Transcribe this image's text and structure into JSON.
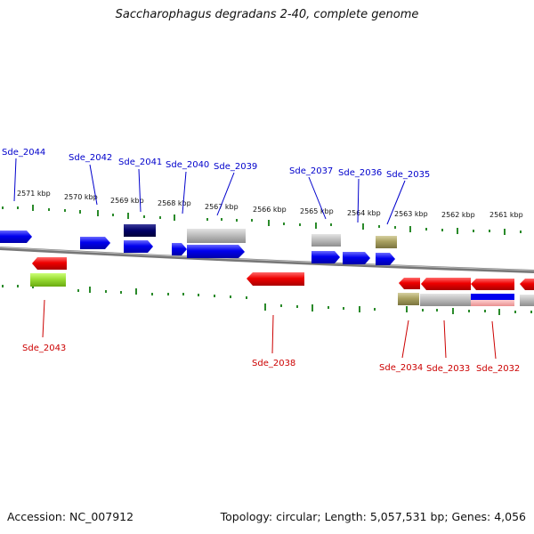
{
  "title": "Saccharophagus degradans 2-40, complete genome",
  "footer": {
    "accession": "Accession: NC_007912",
    "genome_info": "Topology: circular; Length: 5,057,531 bp; Genes: 4,056"
  },
  "colors": {
    "forward_strand": "#0000ee",
    "reverse_strand": "#ee0000",
    "forward_label": "#0000cc",
    "reverse_label": "#cc0000",
    "tick": "#2a8a2a",
    "backbone": "#777777",
    "selected": "#000066",
    "gray": "#bdbdbd",
    "olive": "#a8a060",
    "lime": "#99dd33"
  },
  "scale": {
    "upper_ticks": [
      "2571 kbp",
      "2570 kbp",
      "2569 kbp",
      "2568 kbp",
      "2567 kbp",
      "2566 kbp",
      "2565 kbp",
      "2564 kbp",
      "2563 kbp",
      "2562 kbp",
      "2561 kbp"
    ]
  },
  "genes_forward": [
    {
      "label": "Sde_2044",
      "color": "forward_strand"
    },
    {
      "label": "Sde_2042",
      "color": "forward_strand"
    },
    {
      "label": "Sde_2041",
      "color": "selected"
    },
    {
      "label": "Sde_2040",
      "color": "forward_strand"
    },
    {
      "label": "Sde_2039",
      "color": "forward_strand"
    },
    {
      "label": "Sde_2037",
      "color": "forward_strand"
    },
    {
      "label": "Sde_2036",
      "color": "forward_strand"
    },
    {
      "label": "Sde_2035",
      "color": "forward_strand"
    }
  ],
  "genes_reverse": [
    {
      "label": "Sde_2043",
      "color": "reverse_strand"
    },
    {
      "label": "Sde_2038",
      "color": "reverse_strand"
    },
    {
      "label": "Sde_2034",
      "color": "reverse_strand"
    },
    {
      "label": "Sde_2033",
      "color": "reverse_strand"
    },
    {
      "label": "Sde_2032",
      "color": "reverse_strand"
    }
  ]
}
